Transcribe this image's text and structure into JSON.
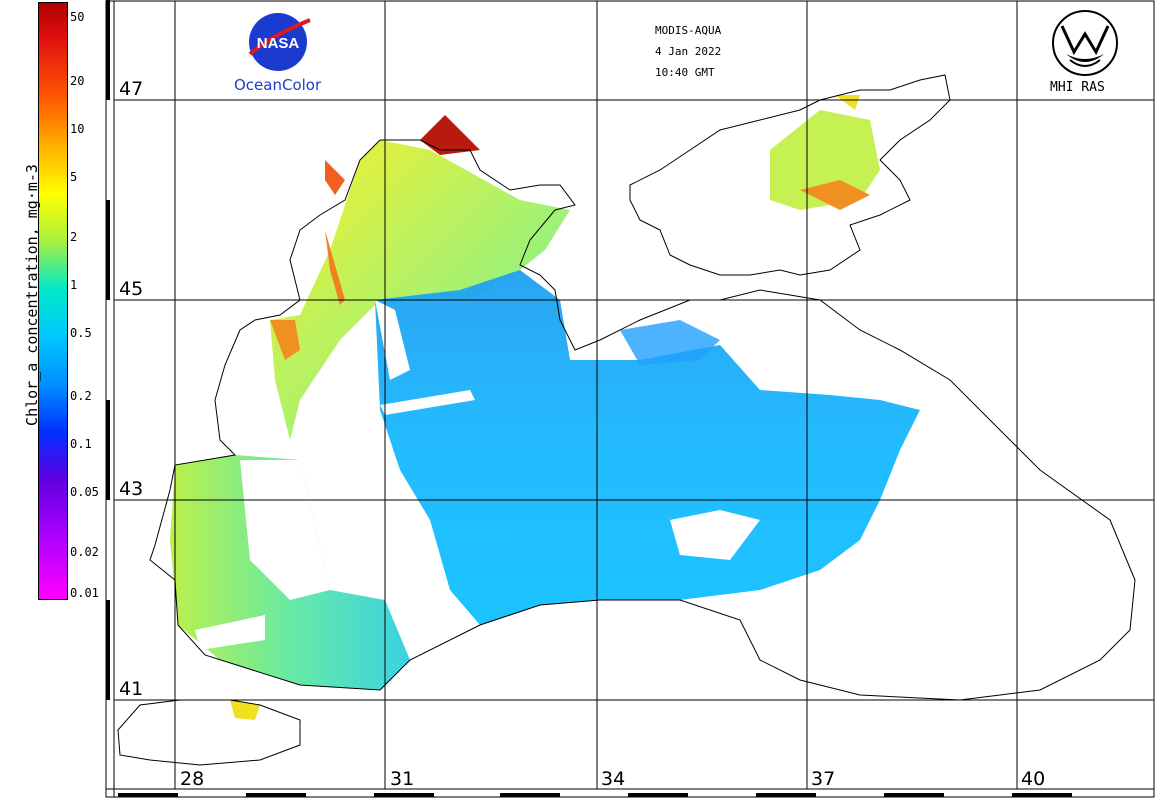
{
  "header": {
    "sensor": "MODIS-AQUA",
    "date": "4 Jan 2022",
    "time": "10:40 GMT"
  },
  "logos": {
    "nasa_wordmark": "NASA",
    "nasa_caption": "OceanColor",
    "mhi_caption": "MHI RAS"
  },
  "colorbar": {
    "title": "Chlor_a concentration, mg·m-3",
    "ticks": [
      "50",
      "20",
      "10",
      "5",
      "2",
      "1",
      "0.5",
      "0.2",
      "0.1",
      "0.05",
      "0.02",
      "0.01"
    ]
  },
  "axes": {
    "latitude_labels": [
      "47",
      "45",
      "43",
      "41"
    ],
    "longitude_labels": [
      "28",
      "31",
      "34",
      "37",
      "40"
    ]
  },
  "colors": {
    "land": "#ffffff",
    "coast": "#000000",
    "high_chl": "#e02010",
    "mid_chl": "#a8f040",
    "low_chl": "#00b0ff"
  }
}
